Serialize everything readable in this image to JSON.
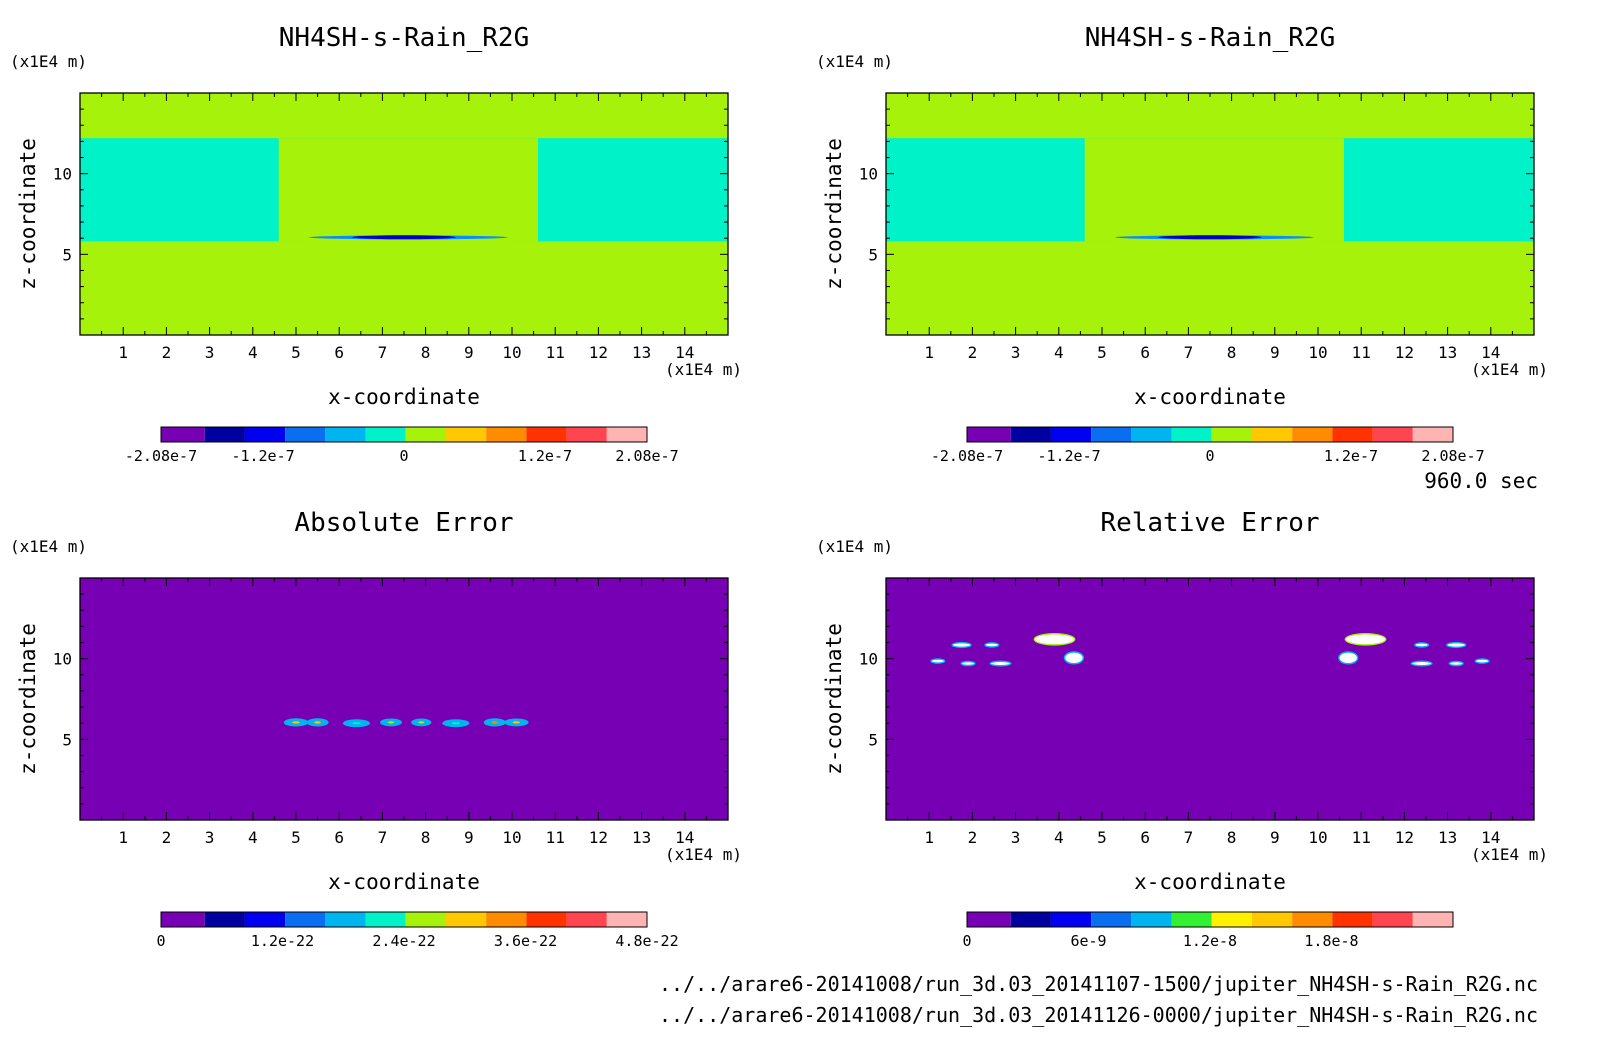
{
  "figure": {
    "time_label": "960.0 sec",
    "files": [
      "../../arare6-20141008/run_3d.03_20141107-1500/jupiter_NH4SH-s-Rain_R2G.nc",
      "../../arare6-20141008/run_3d.03_20141126-0000/jupiter_NH4SH-s-Rain_R2G.nc"
    ]
  },
  "chart_data": [
    {
      "type": "heatmap",
      "title": "NH4SH-s-Rain_R2G",
      "xlabel": "x-coordinate",
      "ylabel": "z-coordinate",
      "x_unit": "(x1E4 m)",
      "y_unit": "(x1E4 m)",
      "xlim": [
        0,
        15
      ],
      "ylim": [
        0,
        15
      ],
      "x_ticks": [
        1,
        2,
        3,
        4,
        5,
        6,
        7,
        8,
        9,
        10,
        11,
        12,
        13,
        14
      ],
      "y_ticks": [
        5,
        10
      ],
      "background": "#a6f20a",
      "regions": [
        {
          "x": [
            0,
            15
          ],
          "y": [
            5.8,
            12.2
          ],
          "color": "#00f2c8"
        },
        {
          "x": [
            4.6,
            10.6
          ],
          "y": [
            5.8,
            12.2
          ],
          "color": "#a6f20a"
        },
        {
          "x": [
            5.2,
            10.0
          ],
          "y": [
            5.8,
            6.4
          ],
          "color": "#a6f20a"
        },
        {
          "x": [
            5.3,
            9.9
          ],
          "y": [
            5.95,
            6.15
          ],
          "color": "#0a8cff"
        },
        {
          "x": [
            6.3,
            8.7
          ],
          "y": [
            6.0,
            6.12
          ],
          "color": "#0000c8"
        }
      ],
      "colorbar": {
        "colors": [
          "#7800b4",
          "#0000a0",
          "#0000f0",
          "#0a6ef0",
          "#00b4f0",
          "#00f2c8",
          "#a6f20a",
          "#ffc800",
          "#ff8c00",
          "#ff3200",
          "#ff4650",
          "#ffb4b4"
        ],
        "tick_labels": [
          "-2.08e-7",
          "-1.2e-7",
          "0",
          "1.2e-7",
          "2.08e-7"
        ],
        "tick_positions": [
          0,
          0.21,
          0.5,
          0.79,
          1.0
        ]
      }
    },
    {
      "type": "heatmap",
      "title": "NH4SH-s-Rain_R2G",
      "xlabel": "x-coordinate",
      "ylabel": "z-coordinate",
      "x_unit": "(x1E4 m)",
      "y_unit": "(x1E4 m)",
      "xlim": [
        0,
        15
      ],
      "ylim": [
        0,
        15
      ],
      "x_ticks": [
        1,
        2,
        3,
        4,
        5,
        6,
        7,
        8,
        9,
        10,
        11,
        12,
        13,
        14
      ],
      "y_ticks": [
        5,
        10
      ],
      "background": "#a6f20a",
      "regions": [
        {
          "x": [
            0,
            15
          ],
          "y": [
            5.8,
            12.2
          ],
          "color": "#00f2c8"
        },
        {
          "x": [
            4.6,
            10.6
          ],
          "y": [
            5.8,
            12.2
          ],
          "color": "#a6f20a"
        },
        {
          "x": [
            5.2,
            10.0
          ],
          "y": [
            5.8,
            6.4
          ],
          "color": "#a6f20a"
        },
        {
          "x": [
            5.3,
            9.9
          ],
          "y": [
            5.95,
            6.15
          ],
          "color": "#0a8cff"
        },
        {
          "x": [
            6.3,
            8.7
          ],
          "y": [
            6.0,
            6.12
          ],
          "color": "#0000c8"
        }
      ],
      "colorbar": {
        "colors": [
          "#7800b4",
          "#0000a0",
          "#0000f0",
          "#0a6ef0",
          "#00b4f0",
          "#00f2c8",
          "#a6f20a",
          "#ffc800",
          "#ff8c00",
          "#ff3200",
          "#ff4650",
          "#ffb4b4"
        ],
        "tick_labels": [
          "-2.08e-7",
          "-1.2e-7",
          "0",
          "1.2e-7",
          "2.08e-7"
        ],
        "tick_positions": [
          0,
          0.21,
          0.5,
          0.79,
          1.0
        ]
      }
    },
    {
      "type": "heatmap",
      "title": "Absolute Error",
      "xlabel": "x-coordinate",
      "ylabel": "z-coordinate",
      "x_unit": "(x1E4 m)",
      "y_unit": "(x1E4 m)",
      "xlim": [
        0,
        15
      ],
      "ylim": [
        0,
        15
      ],
      "x_ticks": [
        1,
        2,
        3,
        4,
        5,
        6,
        7,
        8,
        9,
        10,
        11,
        12,
        13,
        14
      ],
      "y_ticks": [
        5,
        10
      ],
      "background": "#7800b4",
      "blobs": [
        {
          "x": 5.0,
          "y": 6.05,
          "rx": 0.25,
          "ry": 0.16,
          "color": "#00b4f0",
          "core": "#ffc800"
        },
        {
          "x": 5.5,
          "y": 6.05,
          "rx": 0.22,
          "ry": 0.16,
          "color": "#00b4f0",
          "core": "#ffc800"
        },
        {
          "x": 6.4,
          "y": 6.0,
          "rx": 0.28,
          "ry": 0.15,
          "color": "#00b4f0",
          "core": "#00f2c8"
        },
        {
          "x": 7.2,
          "y": 6.05,
          "rx": 0.22,
          "ry": 0.15,
          "color": "#00b4f0",
          "core": "#a6f20a"
        },
        {
          "x": 7.9,
          "y": 6.05,
          "rx": 0.2,
          "ry": 0.15,
          "color": "#00b4f0",
          "core": "#a6f20a"
        },
        {
          "x": 8.7,
          "y": 6.0,
          "rx": 0.28,
          "ry": 0.15,
          "color": "#00b4f0",
          "core": "#00f2c8"
        },
        {
          "x": 9.6,
          "y": 6.05,
          "rx": 0.22,
          "ry": 0.16,
          "color": "#00b4f0",
          "core": "#ff8c00"
        },
        {
          "x": 10.1,
          "y": 6.05,
          "rx": 0.25,
          "ry": 0.15,
          "color": "#00b4f0",
          "core": "#ffc800"
        }
      ],
      "colorbar": {
        "colors": [
          "#7800b4",
          "#0000a0",
          "#0000f0",
          "#0a6ef0",
          "#00b4f0",
          "#00f2c8",
          "#a6f20a",
          "#ffc800",
          "#ff8c00",
          "#ff3200",
          "#ff4650",
          "#ffb4b4"
        ],
        "tick_labels": [
          "0",
          "1.2e-22",
          "2.4e-22",
          "3.6e-22",
          "4.8e-22"
        ],
        "tick_positions": [
          0,
          0.25,
          0.5,
          0.75,
          1.0
        ]
      }
    },
    {
      "type": "heatmap",
      "title": "Relative Error",
      "xlabel": "x-coordinate",
      "ylabel": "z-coordinate",
      "x_unit": "(x1E4 m)",
      "y_unit": "(x1E4 m)",
      "xlim": [
        0,
        15
      ],
      "ylim": [
        0,
        15
      ],
      "x_ticks": [
        1,
        2,
        3,
        4,
        5,
        6,
        7,
        8,
        9,
        10,
        11,
        12,
        13,
        14
      ],
      "y_ticks": [
        5,
        10
      ],
      "background": "#7800b4",
      "blobs": [
        {
          "x": 3.9,
          "y": 11.2,
          "rx": 0.45,
          "ry": 0.3,
          "color": "#ffffff",
          "edge": "#a6f20a"
        },
        {
          "x": 4.35,
          "y": 10.05,
          "rx": 0.2,
          "ry": 0.32,
          "color": "#ffffff",
          "edge": "#00b4f0"
        },
        {
          "x": 11.1,
          "y": 11.2,
          "rx": 0.45,
          "ry": 0.3,
          "color": "#ffffff",
          "edge": "#a6f20a"
        },
        {
          "x": 10.7,
          "y": 10.05,
          "rx": 0.2,
          "ry": 0.32,
          "color": "#ffffff",
          "edge": "#00b4f0"
        },
        {
          "x": 1.75,
          "y": 10.85,
          "rx": 0.2,
          "ry": 0.1,
          "color": "#ffffff",
          "edge": "#00b4f0"
        },
        {
          "x": 2.45,
          "y": 10.85,
          "rx": 0.14,
          "ry": 0.08,
          "color": "#ffffff",
          "edge": "#00b4f0"
        },
        {
          "x": 1.2,
          "y": 9.85,
          "rx": 0.14,
          "ry": 0.08,
          "color": "#ffffff",
          "edge": "#00b4f0"
        },
        {
          "x": 1.9,
          "y": 9.7,
          "rx": 0.14,
          "ry": 0.08,
          "color": "#ffffff",
          "edge": "#00b4f0"
        },
        {
          "x": 2.65,
          "y": 9.7,
          "rx": 0.22,
          "ry": 0.09,
          "color": "#ffffff",
          "edge": "#00b4f0"
        },
        {
          "x": 12.4,
          "y": 10.85,
          "rx": 0.14,
          "ry": 0.08,
          "color": "#ffffff",
          "edge": "#00b4f0"
        },
        {
          "x": 13.2,
          "y": 10.85,
          "rx": 0.2,
          "ry": 0.1,
          "color": "#ffffff",
          "edge": "#00b4f0"
        },
        {
          "x": 12.4,
          "y": 9.7,
          "rx": 0.22,
          "ry": 0.09,
          "color": "#ffffff",
          "edge": "#00b4f0"
        },
        {
          "x": 13.2,
          "y": 9.7,
          "rx": 0.14,
          "ry": 0.08,
          "color": "#ffffff",
          "edge": "#00b4f0"
        },
        {
          "x": 13.8,
          "y": 9.85,
          "rx": 0.14,
          "ry": 0.08,
          "color": "#ffffff",
          "edge": "#00b4f0"
        }
      ],
      "colorbar": {
        "colors": [
          "#7800b4",
          "#0000a0",
          "#0000f0",
          "#0a6ef0",
          "#00b4f0",
          "#32f032",
          "#fff000",
          "#ffc800",
          "#ff8c00",
          "#ff3200",
          "#ff4650",
          "#ffb4b4"
        ],
        "tick_labels": [
          "0",
          "6e-9",
          "1.2e-8",
          "1.8e-8"
        ],
        "tick_positions": [
          0,
          0.25,
          0.5,
          0.75
        ]
      }
    }
  ]
}
